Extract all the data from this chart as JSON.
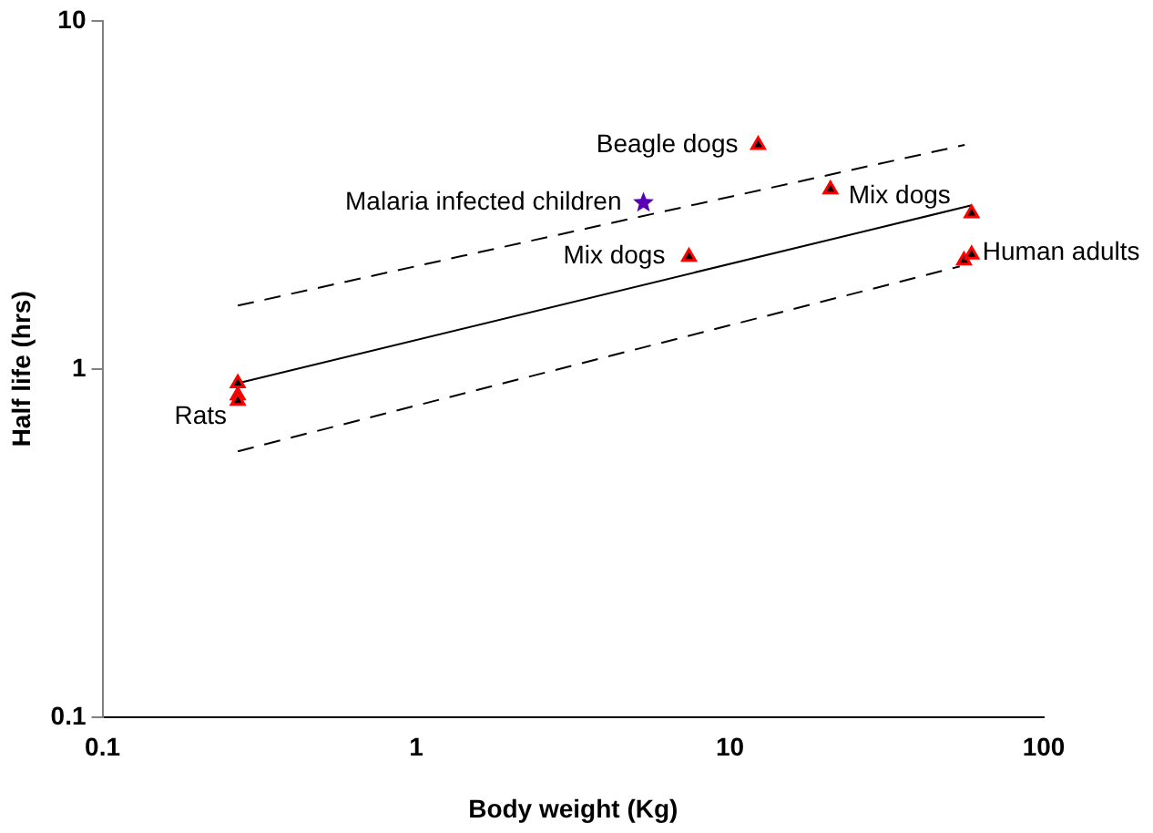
{
  "chart_data": {
    "type": "scatter",
    "xlabel": "Body weight (Kg)",
    "ylabel": "Half life (hrs)",
    "log": "xy",
    "grid": false,
    "legend": false,
    "xlim": [
      0.1,
      100
    ],
    "xticks": [
      0.1,
      1,
      10,
      100
    ],
    "ylim": [
      0.1,
      10
    ],
    "yticks": [
      0.1,
      1,
      10
    ],
    "series": [
      {
        "type": "scatter",
        "marker": "triangle",
        "color": "#ff0000",
        "x": [
          0.27,
          0.27,
          0.27,
          12.3,
          20.9,
          7.4,
          58.9,
          55.7,
          58.9
        ],
        "values": [
          0.91,
          0.84,
          0.81,
          4.4,
          3.28,
          2.1,
          2.8,
          2.05,
          2.13
        ]
      },
      {
        "type": "scatter",
        "marker": "star",
        "color": "#5a00b4",
        "x": [
          5.3
        ],
        "values": [
          3.0
        ]
      },
      {
        "type": "line",
        "marker": "none",
        "line_style": "solid",
        "color": "#000000",
        "x": [
          0.27,
          58.9
        ],
        "values": [
          0.91,
          2.95
        ]
      },
      {
        "type": "line",
        "marker": "none",
        "line_style": "dashed",
        "color": "#000000",
        "x": [
          0.27,
          56
        ],
        "values": [
          1.52,
          4.4
        ]
      },
      {
        "type": "line",
        "marker": "none",
        "line_style": "dashed",
        "color": "#000000",
        "x": [
          0.27,
          54
        ],
        "values": [
          0.58,
          1.97
        ]
      }
    ],
    "annotations": [
      {
        "text": "Beagle dogs",
        "x": 12.3,
        "y": 4.4
      },
      {
        "text": "Malaria infected children",
        "x": 5.3,
        "y": 3.0
      },
      {
        "text": "Mix dogs",
        "x": 20.9,
        "y": 3.28
      },
      {
        "text": "Mix dogs",
        "x": 7.4,
        "y": 2.1
      },
      {
        "text": "Human adults",
        "x": 58.9,
        "y": 2.13
      },
      {
        "text": "Rats",
        "x": 0.27,
        "y": 0.81
      }
    ]
  }
}
